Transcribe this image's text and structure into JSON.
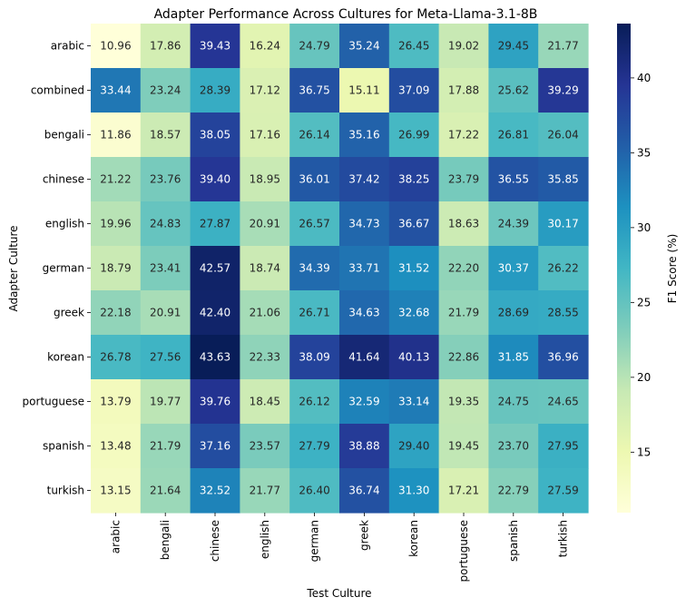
{
  "chart_data": {
    "type": "heatmap",
    "title": "Adapter Performance Across Cultures for Meta-Llama-3.1-8B",
    "xlabel": "Test Culture",
    "ylabel": "Adapter Culture",
    "x_categories": [
      "arabic",
      "bengali",
      "chinese",
      "english",
      "german",
      "greek",
      "korean",
      "portuguese",
      "spanish",
      "turkish"
    ],
    "y_categories": [
      "arabic",
      "combined",
      "bengali",
      "chinese",
      "english",
      "german",
      "greek",
      "korean",
      "portuguese",
      "spanish",
      "turkish"
    ],
    "values": [
      [
        10.96,
        17.86,
        39.43,
        16.24,
        24.79,
        35.24,
        26.45,
        19.02,
        29.45,
        21.77
      ],
      [
        33.44,
        23.24,
        28.39,
        17.12,
        36.75,
        15.11,
        37.09,
        17.88,
        25.62,
        39.29
      ],
      [
        11.86,
        18.57,
        38.05,
        17.16,
        26.14,
        35.16,
        26.99,
        17.22,
        26.81,
        26.04
      ],
      [
        21.22,
        23.76,
        39.4,
        18.95,
        36.01,
        37.42,
        38.25,
        23.79,
        36.55,
        35.85
      ],
      [
        19.96,
        24.83,
        27.87,
        20.91,
        26.57,
        34.73,
        36.67,
        18.63,
        24.39,
        30.17
      ],
      [
        18.79,
        23.41,
        42.57,
        18.74,
        34.39,
        33.71,
        31.52,
        22.2,
        30.37,
        26.22
      ],
      [
        22.18,
        20.91,
        42.4,
        21.06,
        26.71,
        34.63,
        32.68,
        21.79,
        28.69,
        28.55
      ],
      [
        26.78,
        27.56,
        43.63,
        22.33,
        38.09,
        41.64,
        40.13,
        22.86,
        31.85,
        36.96
      ],
      [
        13.79,
        19.77,
        39.76,
        18.45,
        26.12,
        32.59,
        33.14,
        19.35,
        24.75,
        24.65
      ],
      [
        13.48,
        21.79,
        37.16,
        23.57,
        27.79,
        38.88,
        29.4,
        19.45,
        23.7,
        27.95
      ],
      [
        13.15,
        21.64,
        32.52,
        21.77,
        26.4,
        36.74,
        31.3,
        17.21,
        22.79,
        27.59
      ]
    ],
    "annotation_format": "2 decimals",
    "colormap": "YlGnBu",
    "colormap_stops": [
      "#ffffd9",
      "#edf8b1",
      "#c7e9b4",
      "#7fcdbb",
      "#41b6c4",
      "#1d91c0",
      "#225ea8",
      "#253494",
      "#081d58"
    ],
    "vmin": 10.96,
    "vmax": 43.63,
    "colorbar": {
      "label": "F1 Score (%)",
      "ticks": [
        15,
        20,
        25,
        30,
        35,
        40
      ]
    }
  }
}
